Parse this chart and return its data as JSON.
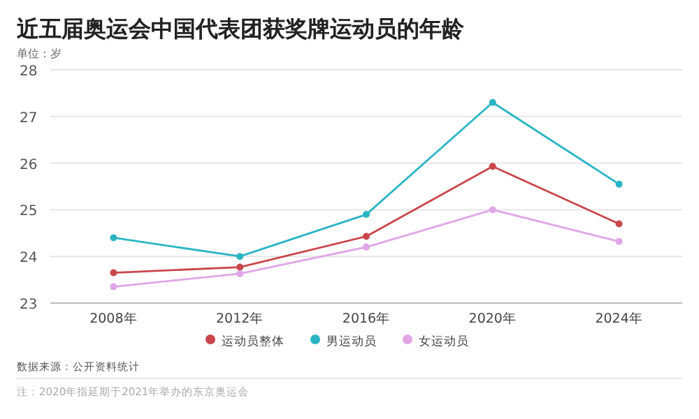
{
  "chart_data": {
    "type": "line",
    "title": "近五届奥运会中国代表团获奖牌运动员的年龄",
    "subtitle": "单位：岁",
    "categories": [
      "2008年",
      "2012年",
      "2016年",
      "2020年",
      "2024年"
    ],
    "series": [
      {
        "name": "运动员整体",
        "color": "#c9464b",
        "values": [
          23.65,
          23.77,
          24.43,
          25.93,
          24.7
        ]
      },
      {
        "name": "男运动员",
        "color": "#2bb5c4",
        "values": [
          24.4,
          24.0,
          24.9,
          27.3,
          25.55
        ]
      },
      {
        "name": "女运动员",
        "color": "#e0a6e6",
        "values": [
          23.35,
          23.63,
          24.2,
          25.0,
          24.32
        ]
      }
    ],
    "ylim": [
      23,
      28
    ],
    "yticks": [
      23,
      24,
      25,
      26,
      27,
      28
    ],
    "grid": "y",
    "legend": "bottom",
    "marker": "circle",
    "line_style": "solid",
    "annotations": [
      "数据来源：公开资料统计",
      "注：2020年指延期于2021年举办的东京奥运会"
    ]
  }
}
